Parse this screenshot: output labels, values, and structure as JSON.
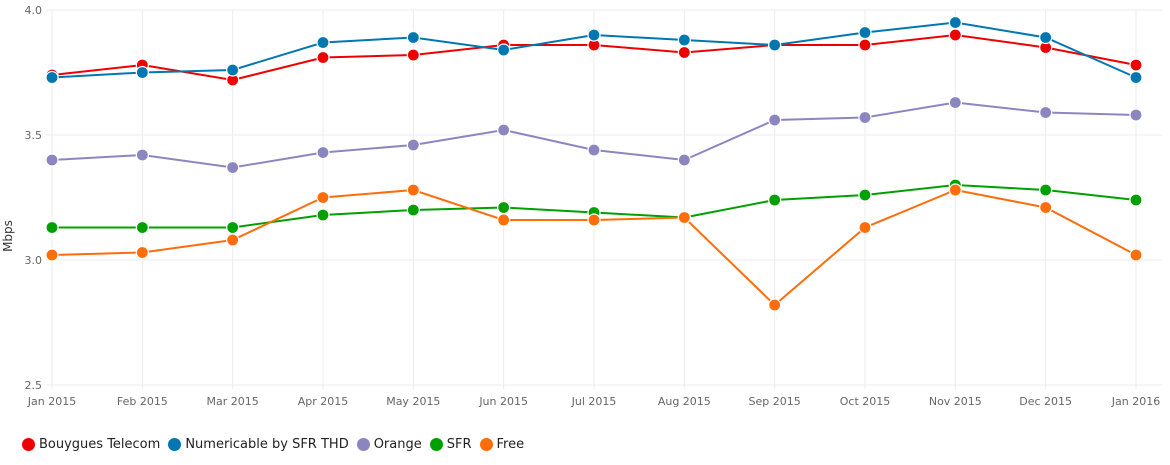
{
  "chart_data": {
    "type": "line",
    "title": "",
    "xlabel": "",
    "ylabel": "Mbps",
    "ylim": [
      2.5,
      4.0
    ],
    "yticks": [
      "2.5",
      "3.0",
      "3.5",
      "4.0"
    ],
    "ytick_values": [
      2.5,
      3.0,
      3.5,
      4.0
    ],
    "grid": true,
    "legend_position": "bottom-left",
    "categories": [
      "Jan 2015",
      "Feb 2015",
      "Mar 2015",
      "Apr 2015",
      "May 2015",
      "Jun 2015",
      "Jul 2015",
      "Aug 2015",
      "Sep 2015",
      "Oct 2015",
      "Nov 2015",
      "Dec 2015",
      "Jan 2016"
    ],
    "series": [
      {
        "name": "Bouygues Telecom",
        "color": "#ee0000",
        "values": [
          3.74,
          3.78,
          3.72,
          3.81,
          3.82,
          3.86,
          3.86,
          3.83,
          3.86,
          3.86,
          3.9,
          3.85,
          3.78
        ]
      },
      {
        "name": "Numericable by SFR THD",
        "color": "#0077b0",
        "values": [
          3.73,
          3.75,
          3.76,
          3.87,
          3.89,
          3.84,
          3.9,
          3.88,
          3.86,
          3.91,
          3.95,
          3.89,
          3.73
        ]
      },
      {
        "name": "Orange",
        "color": "#8c86c0",
        "values": [
          3.4,
          3.42,
          3.37,
          3.43,
          3.46,
          3.52,
          3.44,
          3.4,
          3.56,
          3.57,
          3.63,
          3.59,
          3.58
        ]
      },
      {
        "name": "SFR",
        "color": "#00a000",
        "values": [
          3.13,
          3.13,
          3.13,
          3.18,
          3.2,
          3.21,
          3.19,
          3.17,
          3.24,
          3.26,
          3.3,
          3.28,
          3.24
        ]
      },
      {
        "name": "Free",
        "color": "#ff6d0a",
        "values": [
          3.02,
          3.03,
          3.08,
          3.25,
          3.28,
          3.16,
          3.16,
          3.17,
          2.82,
          3.13,
          3.28,
          3.21,
          3.02
        ]
      }
    ]
  }
}
